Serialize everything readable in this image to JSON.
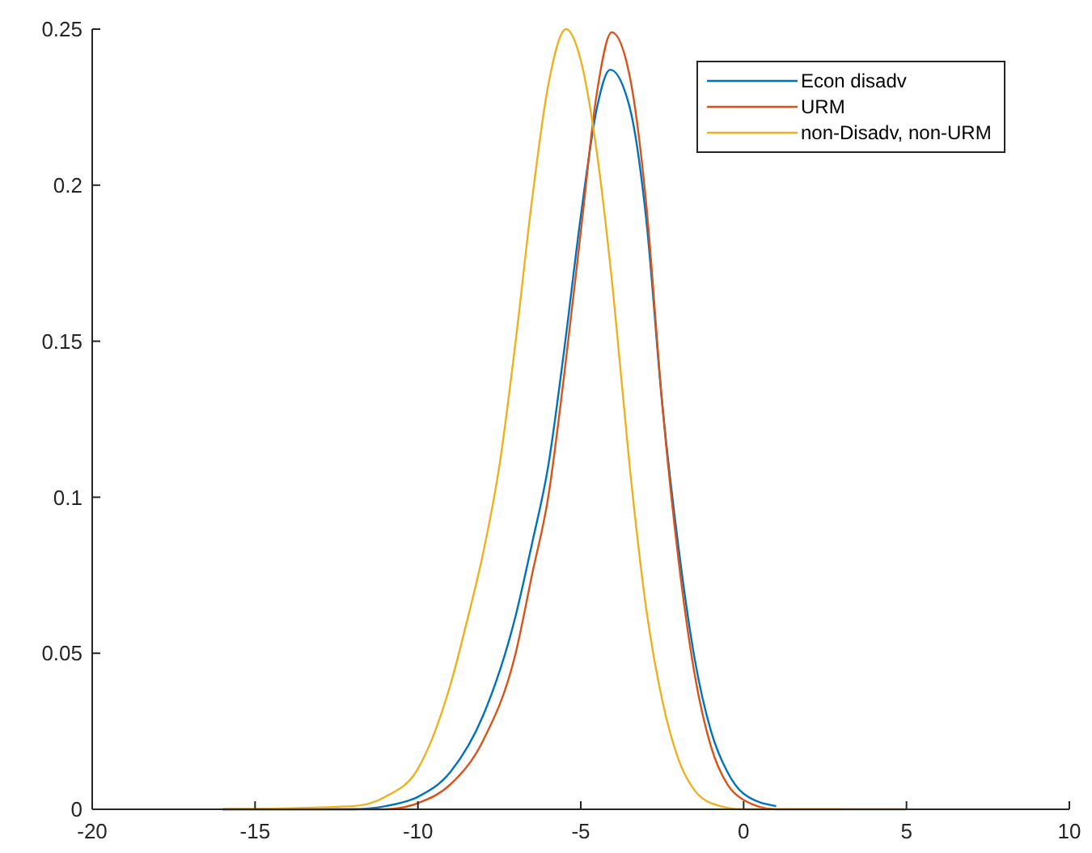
{
  "chart_data": {
    "type": "line",
    "xlim": [
      -20,
      10
    ],
    "xticks": [
      -20,
      -15,
      -10,
      -5,
      0,
      5,
      10
    ],
    "ylim": [
      0,
      0.25
    ],
    "yticks": [
      0,
      0.05,
      0.1,
      0.15,
      0.2,
      0.25
    ],
    "grid": false,
    "legend": "top right",
    "marker": "none",
    "line_style": "solid",
    "series": [
      {
        "name": "Econ disadv",
        "color": "#0072bd",
        "x": [
          -16,
          -12,
          -11,
          -10,
          -9,
          -8,
          -7,
          -6.5,
          -6,
          -5.5,
          -5,
          -4.5,
          -4.1,
          -3.5,
          -3,
          -2.5,
          -2,
          -1.5,
          -1,
          -0.5,
          0,
          1
        ],
        "values": [
          0,
          0,
          0.001,
          0.004,
          0.012,
          0.03,
          0.062,
          0.085,
          0.11,
          0.148,
          0.19,
          0.225,
          0.237,
          0.225,
          0.19,
          0.13,
          0.084,
          0.048,
          0.025,
          0.012,
          0.005,
          0.001
        ]
      },
      {
        "name": "URM",
        "color": "#d95319",
        "x": [
          -16,
          -11,
          -10,
          -9,
          -8,
          -7,
          -6.5,
          -6,
          -5.5,
          -5,
          -4.5,
          -4.05,
          -3.5,
          -3,
          -2.5,
          -2,
          -1.5,
          -1,
          -0.5,
          0,
          1,
          5
        ],
        "values": [
          0,
          0,
          0.002,
          0.008,
          0.022,
          0.05,
          0.075,
          0.1,
          0.14,
          0.185,
          0.23,
          0.249,
          0.235,
          0.195,
          0.13,
          0.08,
          0.043,
          0.02,
          0.008,
          0.003,
          0,
          0
        ]
      },
      {
        "name": "non-Disadv, non-URM",
        "color": "#edb120",
        "x": [
          -16,
          -12,
          -11,
          -10,
          -9,
          -8.5,
          -8,
          -7.5,
          -7,
          -6.5,
          -6,
          -5.45,
          -5,
          -4.5,
          -4,
          -3.5,
          -3,
          -2.5,
          -2,
          -1.5,
          -1,
          0,
          3
        ],
        "values": [
          0,
          0.001,
          0.004,
          0.013,
          0.04,
          0.06,
          0.082,
          0.11,
          0.15,
          0.195,
          0.232,
          0.25,
          0.24,
          0.21,
          0.165,
          0.11,
          0.065,
          0.035,
          0.016,
          0.006,
          0.002,
          0,
          0
        ]
      }
    ]
  }
}
